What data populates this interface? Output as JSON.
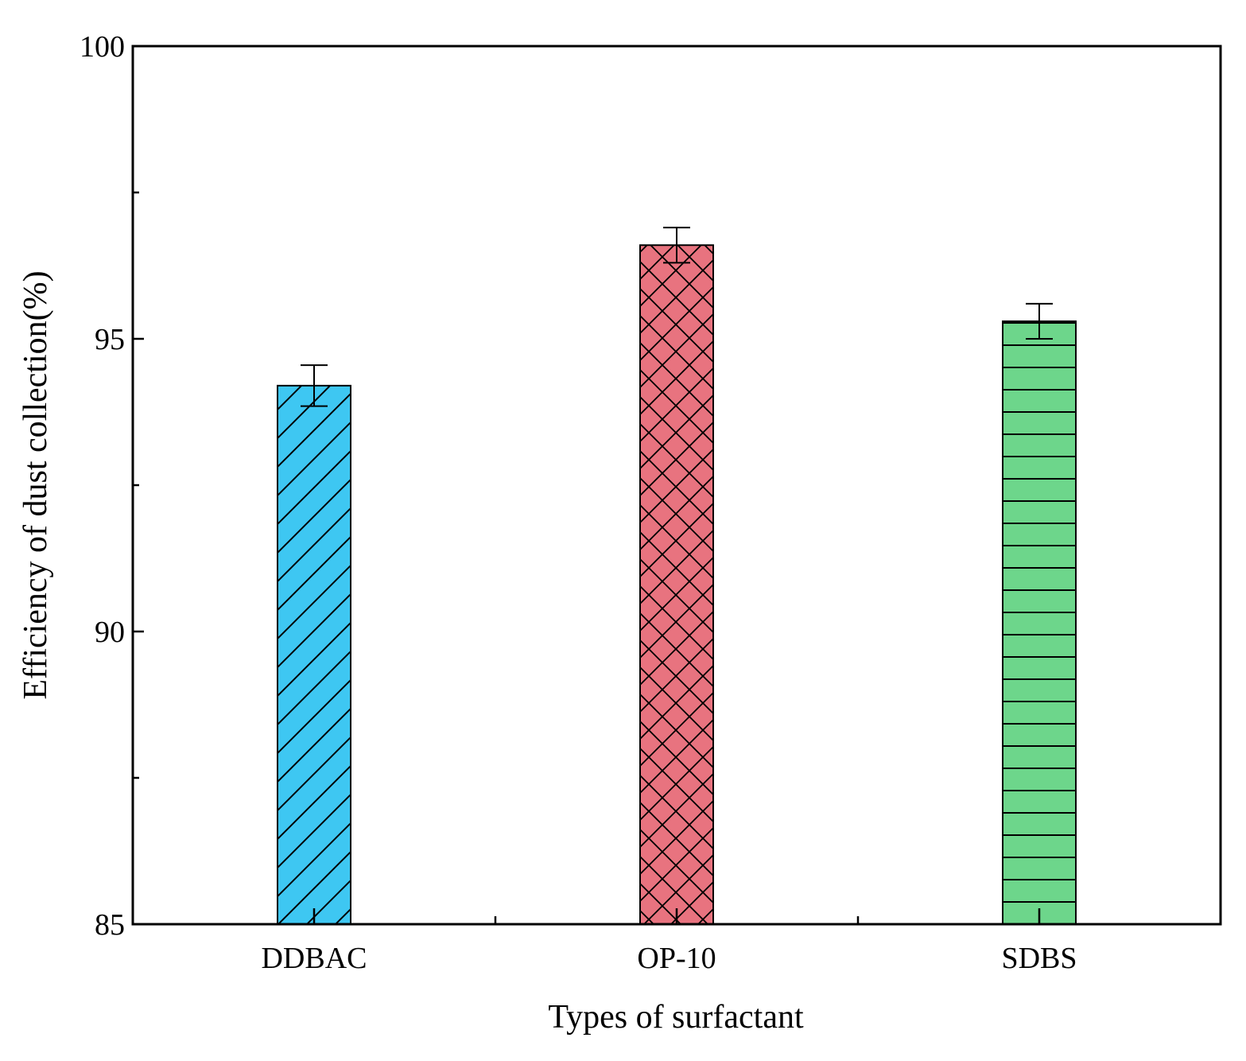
{
  "chart_data": {
    "type": "bar",
    "title": "",
    "xlabel": "Types of surfactant",
    "ylabel": "Efficiency of dust collection(%)",
    "ylim": [
      85,
      100
    ],
    "yticks": [
      85,
      90,
      95,
      100
    ],
    "categories": [
      "DDBAC",
      "OP-10",
      "SDBS"
    ],
    "values": [
      94.2,
      96.6,
      95.3
    ],
    "errors": [
      0.35,
      0.3,
      0.3
    ],
    "colors": [
      "#3EC7F2",
      "#E8737F",
      "#6DD68B"
    ],
    "patterns": [
      "diagonal",
      "crosshatch",
      "horizontal"
    ],
    "grid": false,
    "legend": "none"
  }
}
